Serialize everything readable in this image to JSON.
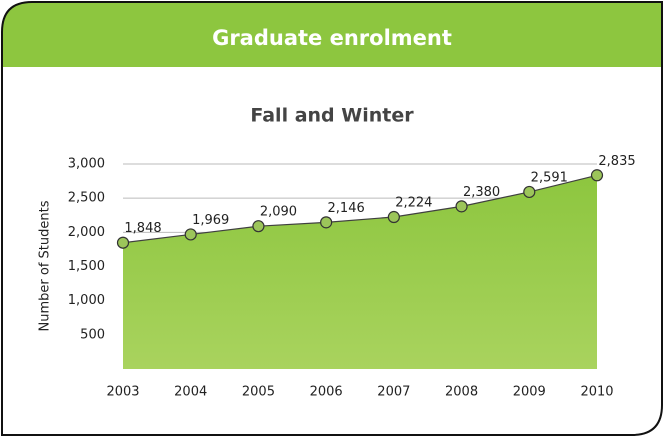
{
  "header": {
    "title": "Graduate enrolment"
  },
  "chart_data": {
    "type": "area",
    "title": "Fall and Winter",
    "y_label": "Number of Students",
    "categories": [
      "2003",
      "2004",
      "2005",
      "2006",
      "2007",
      "2008",
      "2009",
      "2010"
    ],
    "values": [
      1848,
      1969,
      2090,
      2146,
      2224,
      2380,
      2591,
      2835
    ],
    "value_labels": [
      "1,848",
      "1,969",
      "2,090",
      "2,146",
      "2,224",
      "2,380",
      "2,591",
      "2,835"
    ],
    "color": "#8dc63f",
    "line_color": "#404040",
    "marker_color": "#9cc55a",
    "ylim": [
      0,
      3000
    ],
    "yticks": [
      500,
      {
        "value": 1000,
        "label": "1,000"
      },
      {
        "value": 1500,
        "label": "1,500"
      },
      {
        "value": 2000,
        "label": "2,000"
      },
      {
        "value": 2500,
        "label": "2,500"
      },
      {
        "value": 3000,
        "label": "3,000"
      }
    ],
    "grid": true
  }
}
